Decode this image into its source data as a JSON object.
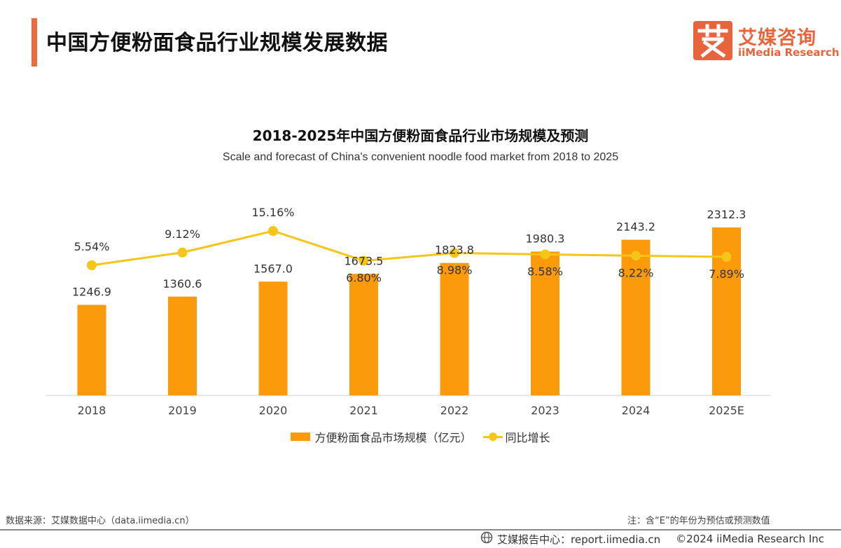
{
  "header": {
    "title": "中国方便粉面食品行业规模发展数据",
    "logo_cn": "艾媒咨询",
    "logo_en": "iiMedia Research",
    "accent_color": "#ee6a3a"
  },
  "chart_data": {
    "type": "bar",
    "title": "2018-2025年中国方便粉面食品行业市场规模及预测",
    "subtitle": "Scale and forecast of China's convenient noodle food market from 2018 to 2025",
    "categories": [
      "2018",
      "2019",
      "2020",
      "2021",
      "2022",
      "2023",
      "2024",
      "2025E"
    ],
    "series": [
      {
        "name": "方便粉面食品市场规模（亿元）",
        "type": "bar",
        "color": "#fb9a0a",
        "values": [
          1246.9,
          1360.6,
          1567.0,
          1673.5,
          1823.8,
          1980.3,
          2143.2,
          2312.3
        ],
        "labels": [
          "1246.9",
          "1360.6",
          "1567.0",
          "1673.5",
          "1823.8",
          "1980.3",
          "2143.2",
          "2312.3"
        ]
      },
      {
        "name": "同比增长",
        "type": "line",
        "color": "#f5c518",
        "values": [
          5.54,
          9.12,
          15.16,
          6.8,
          8.98,
          8.58,
          8.22,
          7.89
        ],
        "labels": [
          "5.54%",
          "9.12%",
          "15.16%",
          "6.80%",
          "8.98%",
          "8.58%",
          "8.22%",
          "7.89%"
        ]
      }
    ],
    "legend": "bottom-center",
    "grid": false
  },
  "footer": {
    "source": "数据来源：艾媒数据中心（data.iimedia.cn）",
    "note": "注：含“E”的年份为预估或预测数值",
    "report_center": "艾媒报告中心：report.iimedia.cn",
    "copyright": "©2024  iiMedia Research Inc"
  }
}
